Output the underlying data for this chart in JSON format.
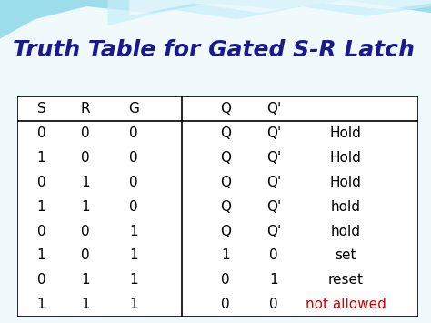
{
  "title": "Truth Table for Gated S-R Latch",
  "title_color": "#1a1a8c",
  "title_fontsize": 18,
  "background_color": "#f0fafd",
  "wave_color1": "#7dd8ea",
  "wave_color2": "#b8ecf5",
  "wave_color3": "#ffffff",
  "header_row": [
    "S",
    "R",
    "G",
    "Q",
    "Q'",
    ""
  ],
  "rows": [
    [
      "0",
      "0",
      "0",
      "Q",
      "Q'",
      "Hold"
    ],
    [
      "1",
      "0",
      "0",
      "Q",
      "Q'",
      "Hold"
    ],
    [
      "0",
      "1",
      "0",
      "Q",
      "Q'",
      "Hold"
    ],
    [
      "1",
      "1",
      "0",
      "Q",
      "Q'",
      "hold"
    ],
    [
      "0",
      "0",
      "1",
      "Q",
      "Q'",
      "hold"
    ],
    [
      "1",
      "0",
      "1",
      "1",
      "0",
      "set"
    ],
    [
      "0",
      "1",
      "1",
      "0",
      "1",
      "reset"
    ],
    [
      "1",
      "1",
      "1",
      "0",
      "0",
      "not allowed"
    ]
  ],
  "note_colors": {
    "Hold": "#000000",
    "hold": "#000000",
    "set": "#000000",
    "reset": "#000000",
    "not allowed": "#cc0000"
  },
  "figsize": [
    4.74,
    3.55
  ],
  "dpi": 100
}
